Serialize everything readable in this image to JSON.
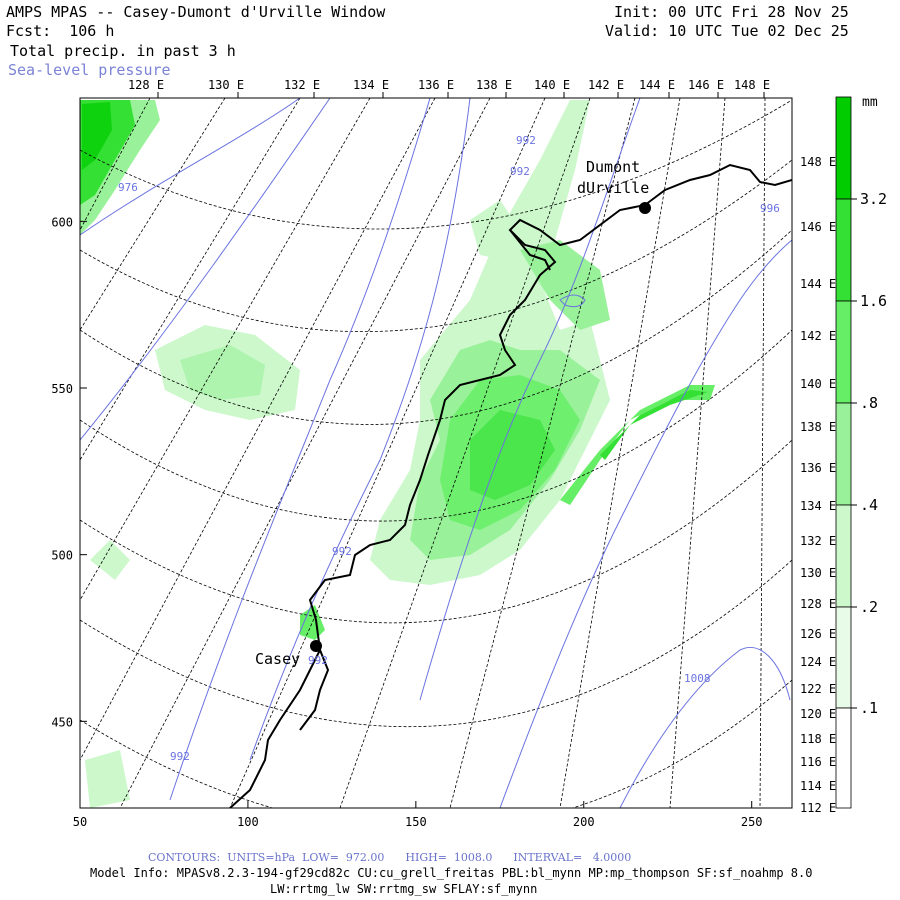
{
  "header": {
    "title": "AMPS MPAS -- Casey-Dumont d'Urville Window",
    "fcst": "Fcst:  106 h",
    "field": "Total precip. in past 3 h",
    "overlay": "Sea-level pressure",
    "init": "Init: 00 UTC Fri 28 Nov 25",
    "valid": "Valid: 10 UTC Tue 02 Dec 25"
  },
  "map": {
    "top_lon_labels": [
      "128 E",
      "130 E",
      "132 E",
      "134 E",
      "136 E",
      "138 E",
      "140 E",
      "142 E",
      "144 E",
      "146 E",
      "148 E"
    ],
    "right_lon_labels": [
      "148 E",
      "146 E",
      "144 E",
      "142 E",
      "140 E",
      "138 E",
      "136 E",
      "134 E",
      "132 E",
      "130 E",
      "128 E",
      "126 E",
      "124 E",
      "122 E",
      "120 E",
      "118 E",
      "116 E",
      "114 E",
      "112 E"
    ],
    "x_ticks": [
      "50",
      "100",
      "150",
      "200",
      "250"
    ],
    "y_ticks": [
      "600",
      "550",
      "500",
      "450"
    ],
    "places": [
      {
        "name": "Dumont",
        "name2": "dUrville"
      },
      {
        "name": "Casey"
      }
    ],
    "contour_labels": [
      "976",
      "992",
      "992",
      "992",
      "992",
      "992",
      "996",
      "1008"
    ]
  },
  "colorbar": {
    "unit": "mm",
    "labels": [
      "3.2",
      "1.6",
      ".8",
      ".4",
      ".2",
      ".1"
    ],
    "colors": [
      "#00cc00",
      "#33e033",
      "#66ee66",
      "#99f299",
      "#ccf8cc",
      "#e8fbe8",
      "#ffffff"
    ]
  },
  "footer": {
    "contours": "CONTOURS:  UNITS=hPa  LOW=  972.00      HIGH=  1008.0      INTERVAL=   4.0000",
    "model_info": "Model Info: MPASv8.2.3-194-gf29cd82c CU:cu_grell_freitas PBL:bl_mynn MP:mp_thompson SF:sf_noahmp 8.0",
    "model_info2": "LW:rrtmg_lw SW:rrtmg_sw SFLAY:sf_mynn"
  }
}
